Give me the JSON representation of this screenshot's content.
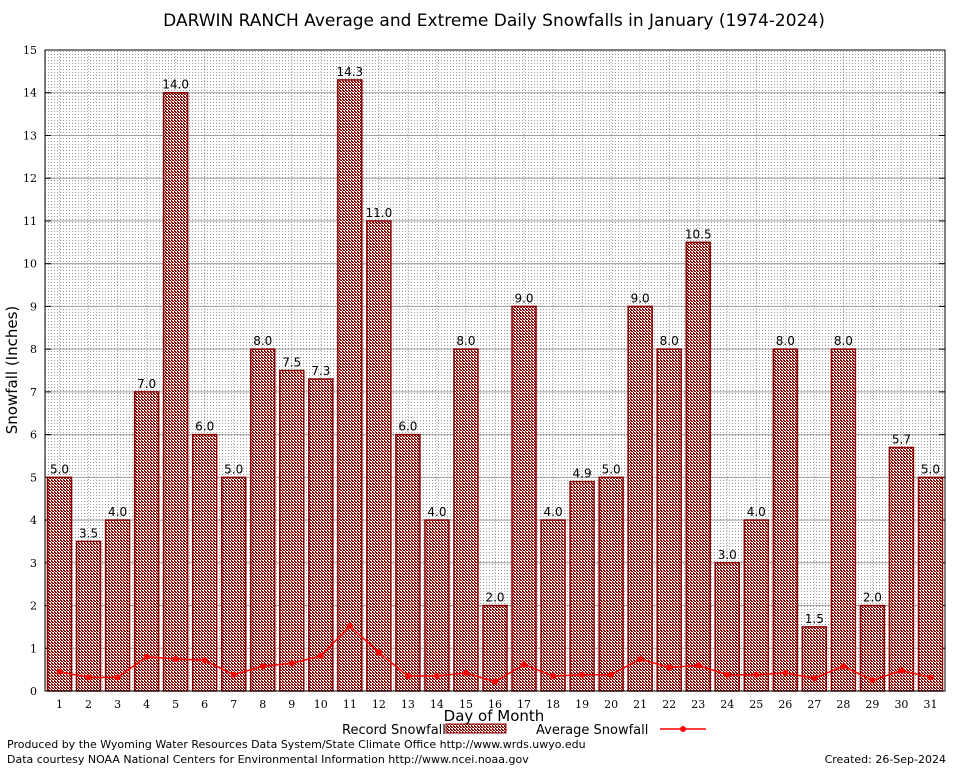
{
  "chart_data": {
    "type": "bar",
    "title": "DARWIN RANCH Average and Extreme Daily Snowfalls in January (1974-2024)",
    "xlabel": "Day of Month",
    "ylabel": "Snowfall (Inches)",
    "ylim": [
      0,
      15
    ],
    "yticks": [
      "0",
      "1",
      "2",
      "3",
      "4",
      "5",
      "6",
      "7",
      "8",
      "9",
      "10",
      "11",
      "12",
      "13",
      "14",
      "15"
    ],
    "grid": true,
    "legend_position": "bottom-center",
    "categories": [
      "1",
      "2",
      "3",
      "4",
      "5",
      "6",
      "7",
      "8",
      "9",
      "10",
      "11",
      "12",
      "13",
      "14",
      "15",
      "16",
      "17",
      "18",
      "19",
      "20",
      "21",
      "22",
      "23",
      "24",
      "25",
      "26",
      "27",
      "28",
      "29",
      "30",
      "31"
    ],
    "series": [
      {
        "name": "Record Snowfall",
        "type": "bar",
        "color": "#8b0000",
        "values": [
          5.0,
          3.5,
          4.0,
          7.0,
          14.0,
          6.0,
          5.0,
          8.0,
          7.5,
          7.3,
          14.3,
          11.0,
          6.0,
          4.0,
          8.0,
          2.0,
          9.0,
          4.0,
          4.9,
          5.0,
          9.0,
          8.0,
          10.5,
          3.0,
          4.0,
          8.0,
          1.5,
          8.0,
          2.0,
          5.7,
          5.0
        ],
        "labels": [
          "5.0",
          "3.5",
          "4.0",
          "7.0",
          "14.0",
          "6.0",
          "5.0",
          "8.0",
          "7.5",
          "7.3",
          "14.3",
          "11.0",
          "6.0",
          "4.0",
          "8.0",
          "2.0",
          "9.0",
          "4.0",
          "4.9",
          "5.0",
          "9.0",
          "8.0",
          "10.5",
          "3.0",
          "4.0",
          "8.0",
          "1.5",
          "8.0",
          "2.0",
          "5.7",
          "5.0"
        ]
      },
      {
        "name": "Average Snowfall",
        "type": "line",
        "color": "#ff0000",
        "values": [
          0.45,
          0.32,
          0.32,
          0.8,
          0.75,
          0.72,
          0.38,
          0.58,
          0.65,
          0.82,
          1.52,
          0.9,
          0.35,
          0.35,
          0.42,
          0.22,
          0.62,
          0.35,
          0.38,
          0.38,
          0.75,
          0.55,
          0.6,
          0.38,
          0.38,
          0.42,
          0.3,
          0.58,
          0.25,
          0.48,
          0.32
        ]
      }
    ]
  },
  "footer": {
    "line1": "Produced by the Wyoming Water Resources Data System/State Climate Office http://www.wrds.uwyo.edu",
    "line2": "Data courtesy NOAA National Centers for Environmental Information http://www.ncei.noaa.gov",
    "created": "Created:  26-Sep-2024"
  }
}
